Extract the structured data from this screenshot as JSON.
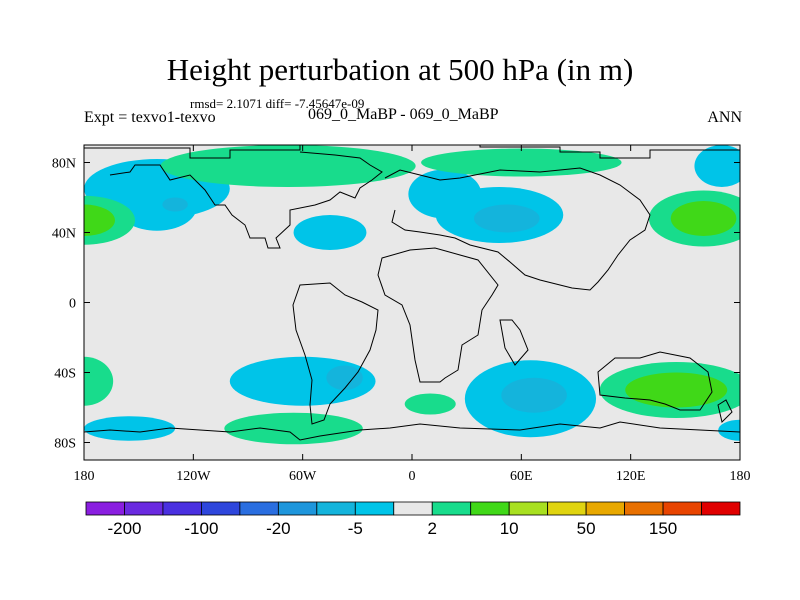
{
  "chart_data": {
    "type": "heatmap",
    "title": "Height perturbation at 500 hPa (in m)",
    "stats_text": "rmsd= 2.1071 diff= -7.45647e-09",
    "left_label": "Expt = texvo1-texvo",
    "center_label": "069_0_MaBP - 069_0_MaBP",
    "right_label": "ANN",
    "x_ticks": [
      {
        "value": -180,
        "label": "180"
      },
      {
        "value": -120,
        "label": "120W"
      },
      {
        "value": -60,
        "label": "60W"
      },
      {
        "value": 0,
        "label": "0"
      },
      {
        "value": 60,
        "label": "60E"
      },
      {
        "value": 120,
        "label": "120E"
      },
      {
        "value": 180,
        "label": "180"
      }
    ],
    "y_ticks": [
      {
        "value": 80,
        "label": "80N"
      },
      {
        "value": 40,
        "label": "40N"
      },
      {
        "value": 0,
        "label": "0"
      },
      {
        "value": -40,
        "label": "40S"
      },
      {
        "value": -80,
        "label": "80S"
      }
    ],
    "xlim": [
      -180,
      180
    ],
    "ylim": [
      -90,
      90
    ],
    "colorbar": {
      "colors": [
        "#8a1ee0",
        "#6a2ae0",
        "#4a30e0",
        "#2e46dc",
        "#2a6ee0",
        "#1e96dc",
        "#14b4dc",
        "#00c4e8",
        "#e8e8e8",
        "#18dc8c",
        "#40d818",
        "#a8e020",
        "#e0d410",
        "#e8a800",
        "#e87000",
        "#e84400",
        "#e00000"
      ],
      "labels": [
        {
          "after_box": 1,
          "text": "-200"
        },
        {
          "after_box": 3,
          "text": "-100"
        },
        {
          "after_box": 5,
          "text": "-20"
        },
        {
          "after_box": 7,
          "text": "-5"
        },
        {
          "after_box": 9,
          "text": "2"
        },
        {
          "after_box": 11,
          "text": "10"
        },
        {
          "after_box": 13,
          "text": "50"
        },
        {
          "after_box": 15,
          "text": "150"
        }
      ]
    },
    "anomalies": [
      {
        "lon": -140,
        "lat": 65,
        "rx": 40,
        "ry": 17,
        "level": "neg1"
      },
      {
        "lon": -140,
        "lat": 55,
        "rx": 22,
        "ry": 14,
        "level": "neg1"
      },
      {
        "lon": -130,
        "lat": 56,
        "rx": 7,
        "ry": 4,
        "level": "neg2"
      },
      {
        "lon": -68,
        "lat": 78,
        "rx": 70,
        "ry": 12,
        "level": "pos1"
      },
      {
        "lon": -45,
        "lat": 40,
        "rx": 20,
        "ry": 10,
        "level": "neg1"
      },
      {
        "lon": 18,
        "lat": 62,
        "rx": 20,
        "ry": 14,
        "level": "neg1"
      },
      {
        "lon": 48,
        "lat": 50,
        "rx": 35,
        "ry": 16,
        "level": "neg1"
      },
      {
        "lon": 52,
        "lat": 48,
        "rx": 18,
        "ry": 8,
        "level": "neg2"
      },
      {
        "lon": 60,
        "lat": 80,
        "rx": 55,
        "ry": 8,
        "level": "pos1"
      },
      {
        "lon": 160,
        "lat": 48,
        "rx": 30,
        "ry": 16,
        "level": "pos1"
      },
      {
        "lon": 160,
        "lat": 48,
        "rx": 18,
        "ry": 10,
        "level": "pos2"
      },
      {
        "lon": 170,
        "lat": 78,
        "rx": 15,
        "ry": 12,
        "level": "neg1"
      },
      {
        "lon": -180,
        "lat": 47,
        "rx": 28,
        "ry": 14,
        "level": "pos1"
      },
      {
        "lon": -180,
        "lat": 47,
        "rx": 17,
        "ry": 9,
        "level": "pos2"
      },
      {
        "lon": -60,
        "lat": -45,
        "rx": 40,
        "ry": 14,
        "level": "neg1"
      },
      {
        "lon": -37,
        "lat": -43,
        "rx": 10,
        "ry": 7,
        "level": "neg2"
      },
      {
        "lon": -180,
        "lat": -45,
        "rx": 16,
        "ry": 14,
        "level": "pos1"
      },
      {
        "lon": -155,
        "lat": -72,
        "rx": 25,
        "ry": 7,
        "level": "neg1"
      },
      {
        "lon": -65,
        "lat": -72,
        "rx": 38,
        "ry": 9,
        "level": "pos1"
      },
      {
        "lon": 10,
        "lat": -58,
        "rx": 14,
        "ry": 6,
        "level": "pos1"
      },
      {
        "lon": 65,
        "lat": -55,
        "rx": 36,
        "ry": 22,
        "level": "neg1"
      },
      {
        "lon": 67,
        "lat": -53,
        "rx": 18,
        "ry": 10,
        "level": "neg2"
      },
      {
        "lon": 145,
        "lat": -50,
        "rx": 42,
        "ry": 16,
        "level": "pos1"
      },
      {
        "lon": 145,
        "lat": -50,
        "rx": 28,
        "ry": 10,
        "level": "pos2"
      },
      {
        "lon": 180,
        "lat": -73,
        "rx": 12,
        "ry": 6,
        "level": "neg1"
      }
    ]
  }
}
